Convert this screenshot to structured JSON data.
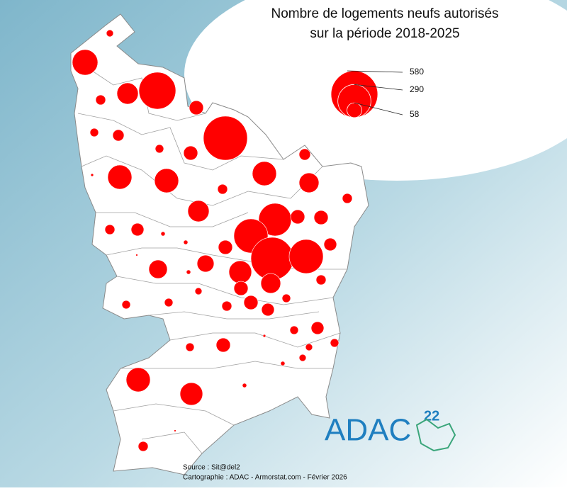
{
  "chart_data": {
    "type": "bubble-map",
    "title_lines": [
      "Nombre de logements neufs autorisés",
      "sur la période 2018-2025"
    ],
    "legend": {
      "values": [
        580,
        290,
        58
      ]
    },
    "color": "#ff0000",
    "values": [
      13,
      173,
      26,
      120,
      360,
      53,
      19,
      34,
      19,
      53,
      512,
      34,
      2,
      154,
      154,
      26,
      154,
      104,
      26,
      120,
      26,
      43,
      5,
      5,
      282,
      53,
      53,
      307,
      53,
      43,
      479,
      307,
      1,
      76,
      90,
      5,
      136,
      26,
      104,
      53,
      13,
      19,
      19,
      26,
      53,
      43,
      19,
      43,
      19,
      2,
      53,
      19,
      19,
      13,
      13,
      5,
      154,
      136,
      5,
      1,
      26
    ],
    "source": "Source : Sit@del2",
    "credit": "Cartographie : ADAC - Armorstat.com - Février 2026",
    "logo": {
      "name": "ADAC",
      "number": "22"
    }
  }
}
